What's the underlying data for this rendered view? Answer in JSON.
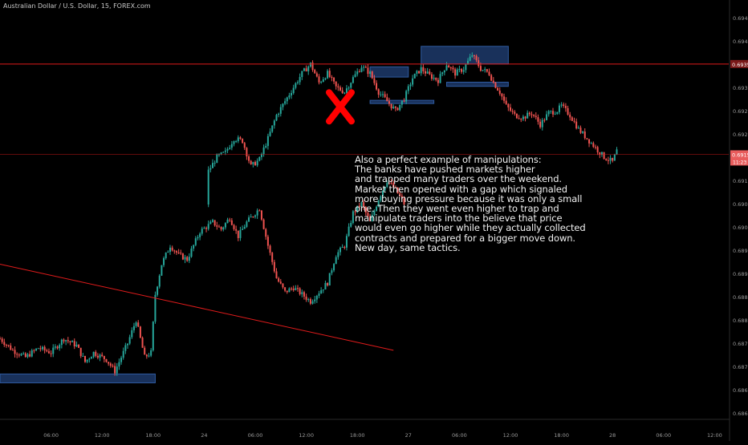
{
  "header": {
    "symbol": "Australian Dollar / U.S. Dollar, 15, FOREX.com"
  },
  "annotation": {
    "text": "Also a perfect example of manipulations:\nThe banks have pushed markets higher\nand trapped many traders over the weekend.\nMarket then opened with a gap which signaled\nmore buying pressure because it was only a small\none. Then they went even higher to trap and\nmanipulate traders into the believe that price\nwould even go higher while they actually collected\ncontracts and prepared for a bigger move down.\nNew day, same tactics."
  },
  "colors": {
    "background": "#000000",
    "up_candle": "#26a69a",
    "down_candle": "#ef5350",
    "zone": "#1d3a6b",
    "line": "#e01b1b",
    "marker": "#ff0000",
    "axis_text": "#9a9a9a",
    "price_badge_dark": "#7a1818",
    "price_badge_light": "#e85c5c"
  },
  "chart_data": {
    "type": "candlestick",
    "title": "Australian Dollar / U.S. Dollar, 15, FOREX.com",
    "y_ticks": [
      "0.69450",
      "0.69400",
      "0.69350",
      "0.69300",
      "0.69250",
      "0.69200",
      "0.69150",
      "0.69100",
      "0.69050",
      "0.69000",
      "0.68950",
      "0.68900",
      "0.68850",
      "0.68800",
      "0.68750",
      "0.68700",
      "0.68650",
      "0.68600"
    ],
    "x_ticks": [
      "06:00",
      "12:00",
      "18:00",
      "24",
      "06:00",
      "12:00",
      "18:00",
      "27",
      "06:00",
      "12:00",
      "18:00",
      "28",
      "06:00",
      "12:00"
    ],
    "ylim": [
      0.6859,
      0.6946
    ],
    "current_price": {
      "value": "0.69156",
      "countdown": "11:23"
    },
    "horizontal_level": {
      "value": "0.69350",
      "price": 0.6935
    },
    "trendline": {
      "start": [
        "23 00:00",
        0.6892
      ],
      "end": [
        "26 22:15",
        0.68735
      ]
    },
    "zones": [
      {
        "name": "support-zone",
        "from": "23 00:00",
        "to": "23 18:15",
        "top": 0.68684,
        "bottom": 0.68665
      },
      {
        "name": "gap-zone-top",
        "from": "26 19:30",
        "to": "27 00:00",
        "top": 0.69344,
        "bottom": 0.69322
      },
      {
        "name": "gap-zone-bottom",
        "from": "26 19:30",
        "to": "27 03:00",
        "top": 0.69272,
        "bottom": 0.69266
      },
      {
        "name": "top-zone",
        "from": "27 01:30",
        "to": "27 11:45",
        "top": 0.69388,
        "bottom": 0.6935
      },
      {
        "name": "top-zone-lower",
        "from": "27 04:30",
        "to": "27 11:45",
        "top": 0.69311,
        "bottom": 0.69302
      }
    ],
    "marker": {
      "type": "x",
      "at": [
        "26 16:00",
        0.69258
      ]
    },
    "close_path": [
      [
        "23 00:00",
        0.6876
      ],
      [
        "23 01:30",
        0.68735
      ],
      [
        "23 03:00",
        0.6872
      ],
      [
        "23 04:30",
        0.6874
      ],
      [
        "23 06:00",
        0.6873
      ],
      [
        "23 07:30",
        0.6876
      ],
      [
        "23 09:00",
        0.68745
      ],
      [
        "23 10:00",
        0.6871
      ],
      [
        "23 11:00",
        0.6873
      ],
      [
        "23 12:30",
        0.68715
      ],
      [
        "23 13:30",
        0.6869
      ],
      [
        "23 15:00",
        0.6875
      ],
      [
        "23 16:00",
        0.688
      ],
      [
        "23 17:00",
        0.6872
      ],
      [
        "23 17:45",
        0.6873
      ],
      [
        "23 18:15",
        0.68855
      ],
      [
        "23 19:00",
        0.6892
      ],
      [
        "23 20:00",
        0.6896
      ],
      [
        "23 21:00",
        0.6894
      ],
      [
        "23 22:00",
        0.6893
      ],
      [
        "23 23:30",
        0.6899
      ],
      [
        "24 01:00",
        0.6901
      ],
      [
        "24 02:00",
        0.68995
      ],
      [
        "24 03:00",
        0.6902
      ],
      [
        "24 04:00",
        0.6898
      ],
      [
        "24 05:00",
        0.6901
      ],
      [
        "24 06:30",
        0.6904
      ],
      [
        "24 07:30",
        0.6896
      ],
      [
        "24 08:30",
        0.6889
      ],
      [
        "24 09:30",
        0.6886
      ],
      [
        "24 10:30",
        0.6887
      ],
      [
        "24 11:30",
        0.68855
      ],
      [
        "24 12:30",
        0.6884
      ],
      [
        "24 13:30",
        0.6886
      ],
      [
        "24 14:30",
        0.6888
      ],
      [
        "24 15:30",
        0.6894
      ],
      [
        "24 16:30",
        0.6896
      ],
      [
        "24 17:30",
        0.6903
      ],
      [
        "24 18:30",
        0.6905
      ],
      [
        "24 19:30",
        0.6901
      ],
      [
        "24 20:30",
        0.6906
      ],
      [
        "24 21:30",
        0.691
      ],
      [
        "24 22:30",
        0.6908
      ],
      [
        "24 23:30",
        0.6905
      ],
      [
        "26 00:30",
        0.6912
      ],
      [
        "26 01:30",
        0.6915
      ],
      [
        "26 02:30",
        0.6916
      ],
      [
        "26 03:30",
        0.6919
      ],
      [
        "26 04:30",
        0.69185
      ],
      [
        "26 05:30",
        0.6913
      ],
      [
        "26 06:30",
        0.69145
      ],
      [
        "26 07:30",
        0.6919
      ],
      [
        "26 08:30",
        0.6924
      ],
      [
        "26 09:30",
        0.6927
      ],
      [
        "26 10:30",
        0.693
      ],
      [
        "26 11:30",
        0.6933
      ],
      [
        "26 12:30",
        0.6935
      ],
      [
        "26 13:30",
        0.6931
      ],
      [
        "26 14:30",
        0.6933
      ],
      [
        "26 15:30",
        0.693
      ],
      [
        "26 16:30",
        0.6929
      ],
      [
        "26 17:30",
        0.6932
      ],
      [
        "26 18:30",
        0.69345
      ],
      [
        "26 19:30",
        0.6933
      ],
      [
        "26 20:30",
        0.6929
      ],
      [
        "26 21:30",
        0.6927
      ],
      [
        "26 22:30",
        0.6925
      ],
      [
        "26 23:30",
        0.69275
      ],
      [
        "27 00:30",
        0.6932
      ],
      [
        "27 01:30",
        0.6934
      ],
      [
        "27 02:30",
        0.69325
      ],
      [
        "27 03:30",
        0.69315
      ],
      [
        "27 04:30",
        0.6935
      ],
      [
        "27 05:30",
        0.6933
      ],
      [
        "27 06:30",
        0.6934
      ],
      [
        "27 07:30",
        0.6937
      ],
      [
        "27 08:30",
        0.6934
      ],
      [
        "27 09:30",
        0.6933
      ],
      [
        "27 10:00",
        0.6931
      ],
      [
        "27 10:45",
        0.6929
      ],
      [
        "27 11:30",
        0.6926
      ],
      [
        "27 12:30",
        0.6924
      ],
      [
        "27 13:30",
        0.69235
      ],
      [
        "27 14:30",
        0.69245
      ],
      [
        "27 15:30",
        0.6922
      ],
      [
        "27 16:30",
        0.69245
      ],
      [
        "27 17:30",
        0.6925
      ],
      [
        "27 18:00",
        0.6926
      ],
      [
        "27 19:00",
        0.6924
      ],
      [
        "27 20:00",
        0.6921
      ],
      [
        "27 21:00",
        0.6919
      ],
      [
        "27 22:00",
        0.6917
      ],
      [
        "27 23:00",
        0.6915
      ],
      [
        "28 00:00",
        0.6914
      ],
      [
        "28 00:45",
        0.69175
      ]
    ]
  }
}
